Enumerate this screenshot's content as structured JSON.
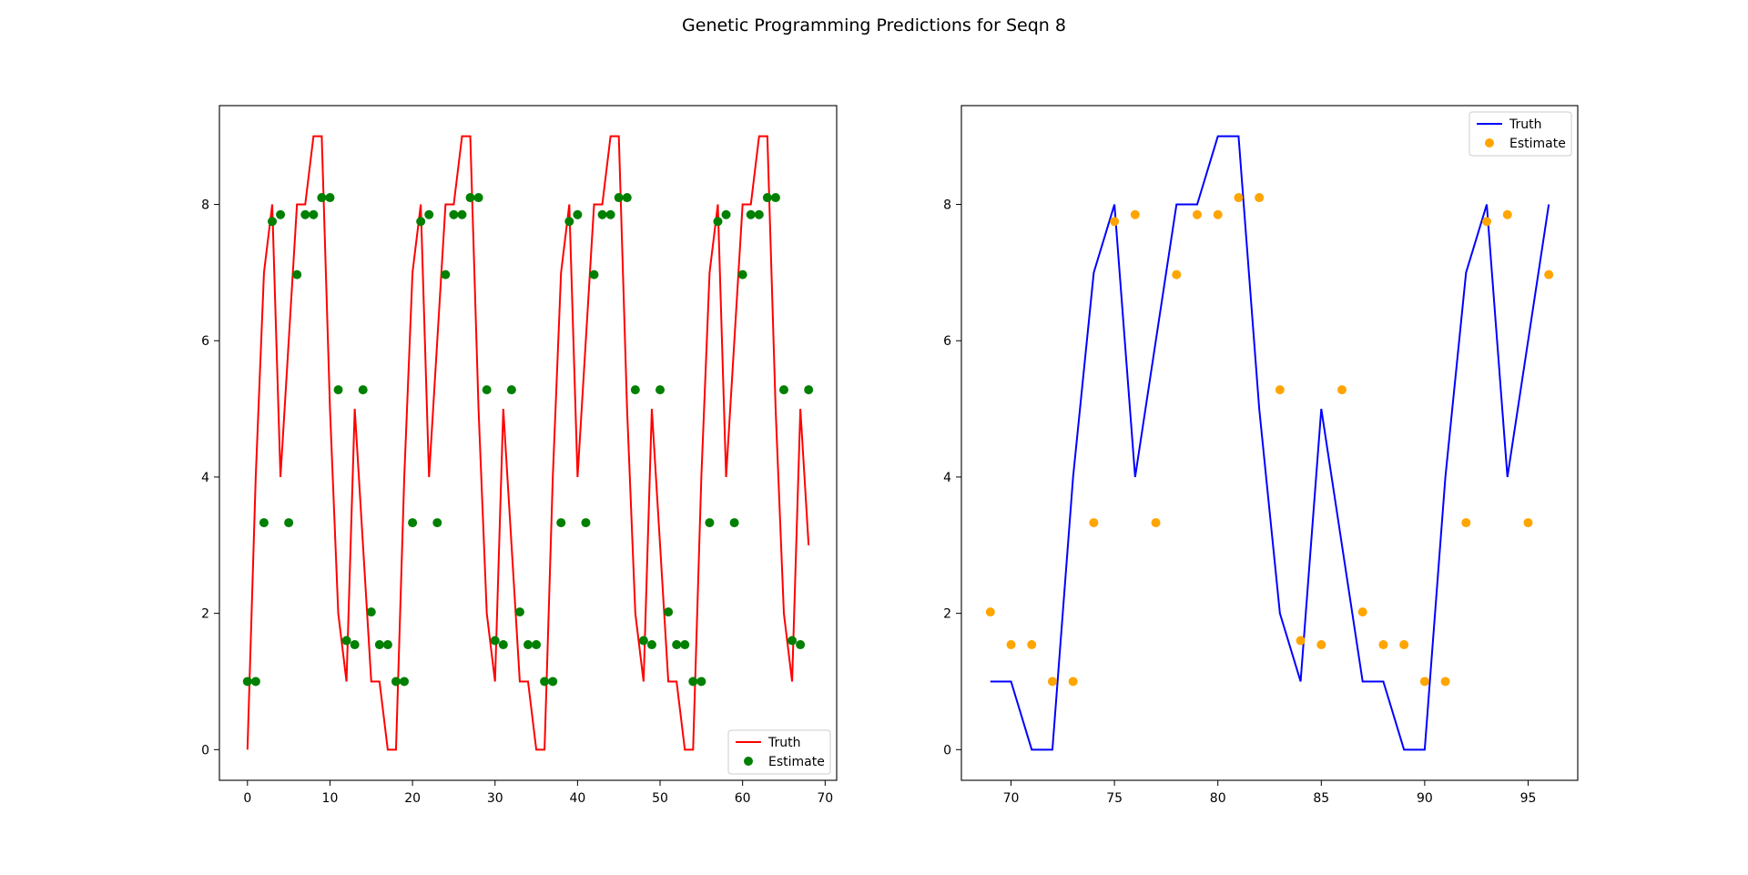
{
  "title": "Genetic Programming Predictions for Seqn 8",
  "colors": {
    "left_truth": "#ff0000",
    "left_estimate": "#008000",
    "right_truth": "#0000ff",
    "right_estimate": "#ffa500"
  },
  "chart_data": [
    {
      "type": "line",
      "title": "",
      "xlabel": "",
      "ylabel": "",
      "xlim": [
        -3.4,
        71.4
      ],
      "ylim": [
        -0.45,
        9.45
      ],
      "xticks": [
        0,
        10,
        20,
        30,
        40,
        50,
        60,
        70
      ],
      "yticks": [
        0,
        2,
        4,
        6,
        8
      ],
      "legend_position": "lower-right",
      "series": [
        {
          "name": "Truth",
          "kind": "line",
          "color": "#ff0000",
          "x": [
            0,
            1,
            2,
            3,
            4,
            5,
            6,
            7,
            8,
            9,
            10,
            11,
            12,
            13,
            14,
            15,
            16,
            17,
            18,
            19,
            20,
            21,
            22,
            23,
            24,
            25,
            26,
            27,
            28,
            29,
            30,
            31,
            32,
            33,
            34,
            35,
            36,
            37,
            38,
            39,
            40,
            41,
            42,
            43,
            44,
            45,
            46,
            47,
            48,
            49,
            50,
            51,
            52,
            53,
            54,
            55,
            56,
            57,
            58,
            59,
            60,
            61,
            62,
            63,
            64,
            65,
            66,
            67,
            68
          ],
          "y": [
            0,
            4,
            7,
            8,
            4,
            6,
            8,
            8,
            9,
            9,
            5,
            2,
            1,
            5,
            3,
            1,
            1,
            0,
            0,
            4,
            7,
            8,
            4,
            6,
            8,
            8,
            9,
            9,
            5,
            2,
            1,
            5,
            3,
            1,
            1,
            0,
            0,
            4,
            7,
            8,
            4,
            6,
            8,
            8,
            9,
            9,
            5,
            2,
            1,
            5,
            3,
            1,
            1,
            0,
            0,
            4,
            7,
            8,
            4,
            6,
            8,
            8,
            9,
            9,
            5,
            2,
            1,
            5,
            3
          ]
        },
        {
          "name": "Estimate",
          "kind": "scatter",
          "color": "#008000",
          "x": [
            0,
            1,
            2,
            3,
            4,
            5,
            6,
            7,
            8,
            9,
            10,
            11,
            12,
            13,
            14,
            15,
            16,
            17,
            18,
            19,
            20,
            21,
            22,
            23,
            24,
            25,
            26,
            27,
            28,
            29,
            30,
            31,
            32,
            33,
            34,
            35,
            36,
            37,
            38,
            39,
            40,
            41,
            42,
            43,
            44,
            45,
            46,
            47,
            48,
            49,
            50,
            51,
            52,
            53,
            54,
            55,
            56,
            57,
            58,
            59,
            60,
            61,
            62,
            63,
            64,
            65,
            66,
            67,
            68
          ],
          "y": [
            1.0,
            1.0,
            3.33,
            7.75,
            7.85,
            3.33,
            6.97,
            7.85,
            7.85,
            8.1,
            8.1,
            5.28,
            1.6,
            1.54,
            5.28,
            2.02,
            1.54,
            1.54,
            1.0,
            1.0,
            3.33,
            7.75,
            7.85,
            3.33,
            6.97,
            7.85,
            7.85,
            8.1,
            8.1,
            5.28,
            1.6,
            1.54,
            5.28,
            2.02,
            1.54,
            1.54,
            1.0,
            1.0,
            3.33,
            7.75,
            7.85,
            3.33,
            6.97,
            7.85,
            7.85,
            8.1,
            8.1,
            5.28,
            1.6,
            1.54,
            5.28,
            2.02,
            1.54,
            1.54,
            1.0,
            1.0,
            3.33,
            7.75,
            7.85,
            3.33,
            6.97,
            7.85,
            7.85,
            8.1,
            8.1,
            5.28,
            1.6,
            1.54,
            5.28
          ]
        }
      ]
    },
    {
      "type": "line",
      "title": "",
      "xlabel": "",
      "ylabel": "",
      "xlim": [
        67.6,
        97.4
      ],
      "ylim": [
        -0.45,
        9.45
      ],
      "xticks": [
        70,
        75,
        80,
        85,
        90,
        95
      ],
      "yticks": [
        0,
        2,
        4,
        6,
        8
      ],
      "legend_position": "upper-right",
      "series": [
        {
          "name": "Truth",
          "kind": "line",
          "color": "#0000ff",
          "x": [
            69,
            70,
            71,
            72,
            73,
            74,
            75,
            76,
            77,
            78,
            79,
            80,
            81,
            82,
            83,
            84,
            85,
            86,
            87,
            88,
            89,
            90,
            91,
            92,
            93,
            94,
            95,
            96
          ],
          "y": [
            1,
            1,
            0,
            0,
            4,
            7,
            8,
            4,
            6,
            8,
            8,
            9,
            9,
            5,
            2,
            1,
            5,
            3,
            1,
            1,
            0,
            0,
            4,
            7,
            8,
            4,
            6,
            8
          ]
        },
        {
          "name": "Estimate",
          "kind": "scatter",
          "color": "#ffa500",
          "x": [
            69,
            70,
            71,
            72,
            73,
            74,
            75,
            76,
            77,
            78,
            79,
            80,
            81,
            82,
            83,
            84,
            85,
            86,
            87,
            88,
            89,
            90,
            91,
            92,
            93,
            94,
            95,
            96
          ],
          "y": [
            2.02,
            1.54,
            1.54,
            1.0,
            1.0,
            3.33,
            7.75,
            7.85,
            3.33,
            6.97,
            7.85,
            7.85,
            8.1,
            8.1,
            5.28,
            1.6,
            1.54,
            5.28,
            2.02,
            1.54,
            1.54,
            1.0,
            1.0,
            3.33,
            7.75,
            7.85,
            3.33,
            6.97
          ]
        }
      ]
    }
  ]
}
